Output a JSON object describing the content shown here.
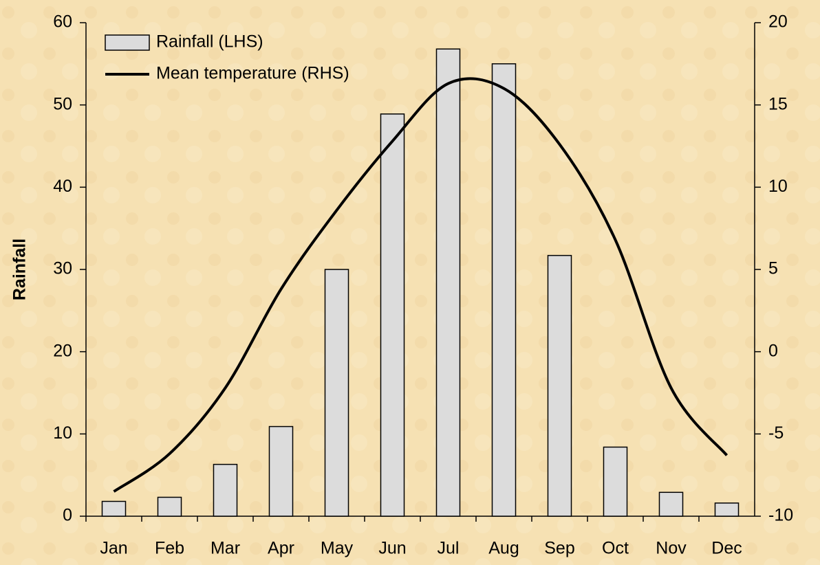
{
  "chart_data": {
    "type": "bar-line",
    "y_axis_label": "Rainfall",
    "categories": [
      "Jan",
      "Feb",
      "Mar",
      "Apr",
      "May",
      "Jun",
      "Jul",
      "Aug",
      "Sep",
      "Oct",
      "Nov",
      "Dec"
    ],
    "series": [
      {
        "name": "Rainfall (LHS)",
        "type": "bar",
        "color": "#dcdcdc",
        "axis": "y",
        "values": [
          1.8,
          2.3,
          6.3,
          10.9,
          30,
          48.9,
          56.8,
          55.0,
          31.7,
          8.4,
          2.9,
          1.6
        ]
      },
      {
        "name": "Mean temperature (RHS)",
        "type": "line",
        "color": "#000000",
        "axis": "y2",
        "values": [
          -8.5,
          -6.2,
          -2.2,
          3.8,
          8.6,
          12.8,
          16.3,
          16.0,
          12.6,
          6.8,
          -2.2,
          -6.3
        ]
      }
    ],
    "ylim": [
      0,
      60
    ],
    "yticks": [
      0,
      10,
      20,
      30,
      40,
      50,
      60
    ],
    "y2lim": [
      -10,
      20
    ],
    "y2ticks": [
      -10,
      -5,
      0,
      5,
      10,
      15,
      20
    ],
    "legend": "upper left"
  }
}
